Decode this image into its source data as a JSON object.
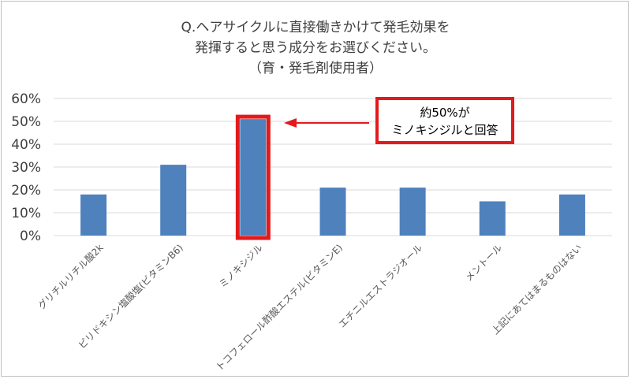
{
  "chart_data": {
    "type": "bar",
    "title": [
      "Q.ヘアサイクルに直接働きかけて発毛効果を",
      "発揮すると思う成分をお選びください。",
      "（育・発毛剤使用者）"
    ],
    "categories": [
      "グリチルリチル酸2k",
      "ピリドキシン塩酸塩(ビタミンB6)",
      "ミノキシジル",
      "トコフェロール酢酸エステル(ビタミンE)",
      "エチニルエストラジオール",
      "メントール",
      "上記にあてはまるものはない"
    ],
    "values": [
      18,
      31,
      51,
      21,
      21,
      15,
      18
    ],
    "unit": "%",
    "ylim": [
      0,
      60
    ],
    "yticks": [
      "0%",
      "10%",
      "20%",
      "30%",
      "40%",
      "50%",
      "60%"
    ],
    "grid": true,
    "highlight_index": 2,
    "annotation": [
      "約50%が",
      "ミノキシジルと回答"
    ],
    "colors": {
      "bar": "#4f81bd",
      "highlight": "#e31a1c",
      "grid": "#d9d9d9"
    }
  }
}
